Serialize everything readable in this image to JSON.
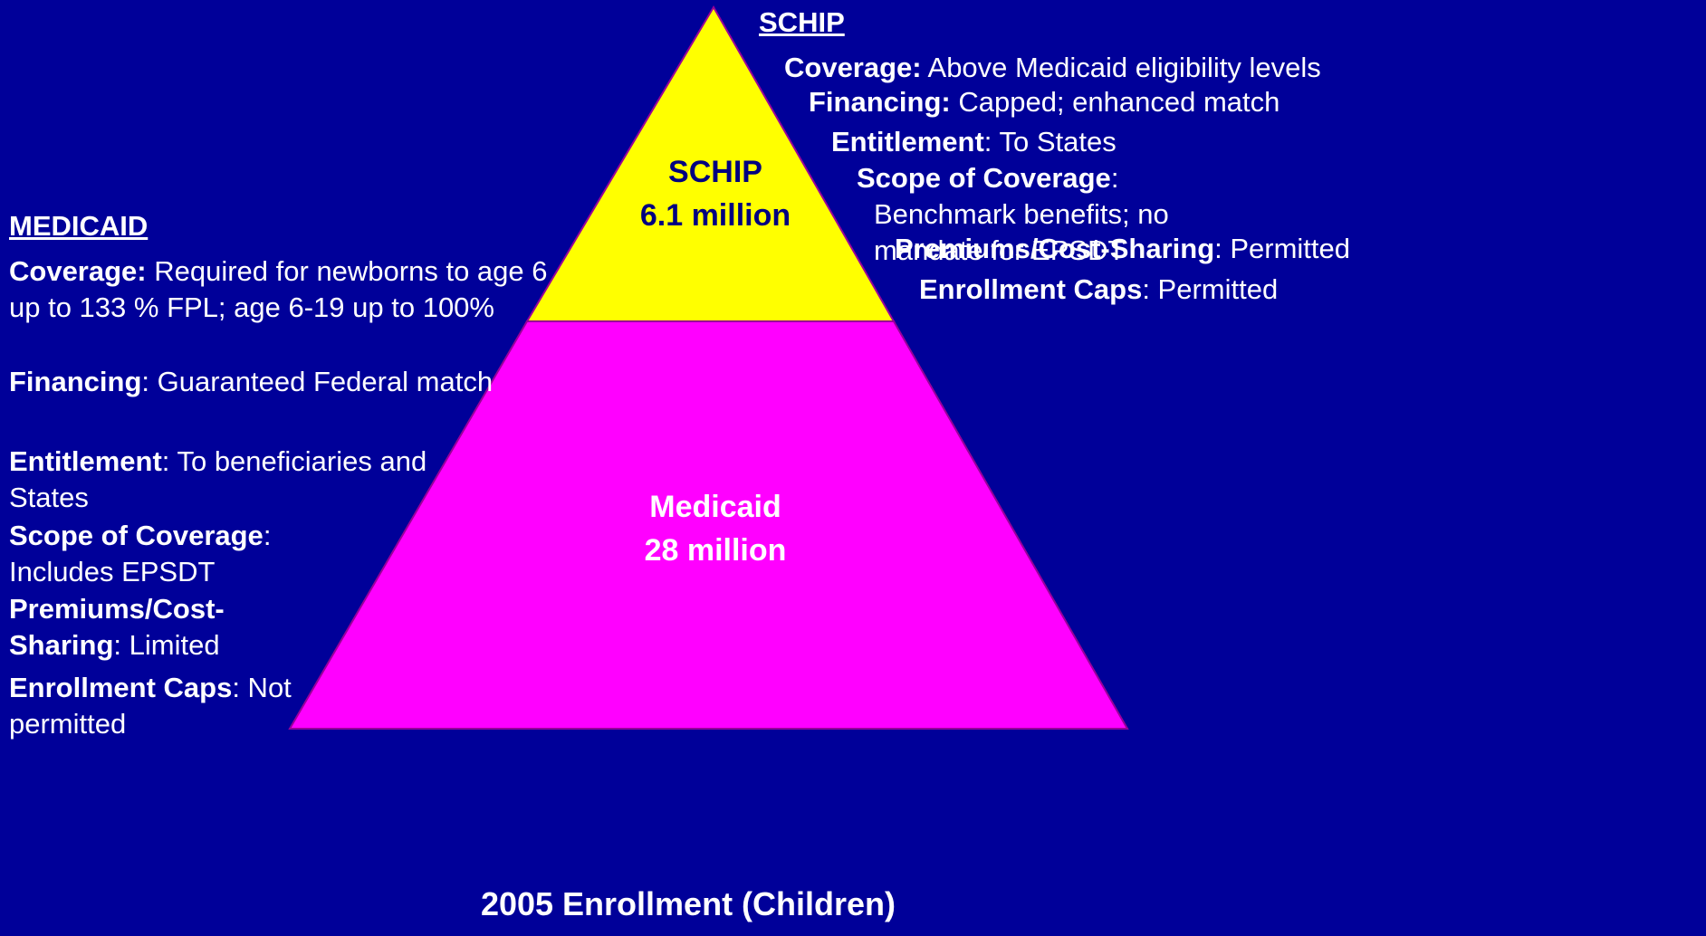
{
  "pyramid": {
    "top": {
      "name": "SCHIP",
      "count": "6.1 million"
    },
    "bottom": {
      "name": "Medicaid",
      "count": "28 million"
    }
  },
  "schip": {
    "heading": "SCHIP",
    "items": [
      {
        "label": "Coverage:",
        "text": "Above Medicaid eligibility levels"
      },
      {
        "label": "Financing:",
        "text": "Capped; enhanced match"
      },
      {
        "label": "Entitlement",
        "text": ": To States"
      },
      {
        "label": "Scope of Coverage",
        "text": ": Benchmark benefits; no mandate for EPSDT"
      },
      {
        "label": "Premiums/Cost-Sharing",
        "text": ": Permitted"
      },
      {
        "label": "Enrollment Caps",
        "text": ": Permitted"
      }
    ]
  },
  "medicaid": {
    "heading": "MEDICAID",
    "items": [
      {
        "label": "Coverage:",
        "text": "Required for newborns to age 6 up to 133 % FPL; age 6-19 up to 100%"
      },
      {
        "label": "Financing",
        "text": ": Guaranteed Federal match"
      },
      {
        "label": "Entitlement",
        "text": ": To beneficiaries and States"
      },
      {
        "label": "Scope of Coverage",
        "text": ": Includes EPSDT"
      },
      {
        "label": "Premiums/Cost-Sharing",
        "text": ": Limited"
      },
      {
        "label": "Enrollment Caps",
        "text": ": Not permitted"
      }
    ]
  },
  "footer": "2005 Enrollment (Children)"
}
